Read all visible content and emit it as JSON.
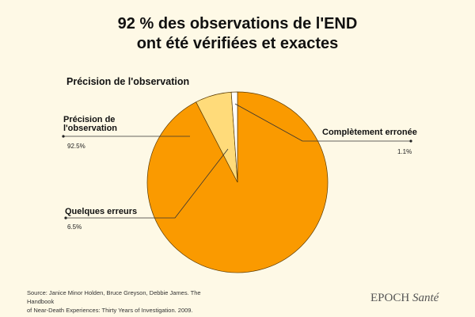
{
  "chart_data": {
    "type": "pie",
    "title": "92 % des observations de l'END ont été vérifiées et exactes",
    "title_lines": [
      "92 % des observations de l'END",
      "ont été vérifiées et exactes"
    ],
    "subtitle": "Précision de l'observation",
    "slices": [
      {
        "label": "Précision de l'observation",
        "label_lines": [
          "Précision de",
          "l'observation"
        ],
        "value": 92.5,
        "display": "92.5%",
        "color": "#fa9a00"
      },
      {
        "label": "Quelques erreurs",
        "value": 6.5,
        "display": "6.5%",
        "color": "#ffdb7a"
      },
      {
        "label": "Complètement erronée",
        "value": 1.1,
        "display": "1.1%",
        "color": "#ffffff"
      }
    ]
  },
  "footer": {
    "source_lines": [
      "Source: Janice Minor Holden, Bruce Greyson, Debbie James. The Handbook",
      "of Near-Death Experiences: Thirty Years of Investigation. 2009."
    ],
    "brand": "EPOCH",
    "brand_italic": "Santé"
  }
}
